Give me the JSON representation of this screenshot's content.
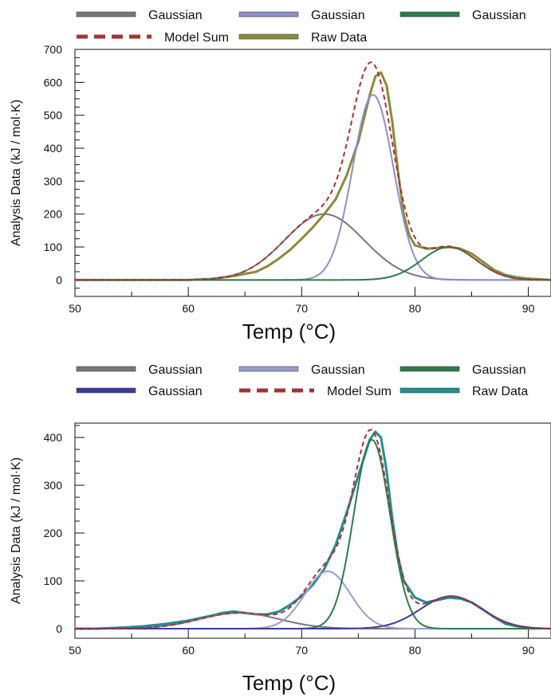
{
  "chart_data": [
    {
      "type": "line",
      "xlabel": "Temp (°C)",
      "ylabel": "Analysis Data (kJ / mol·K)",
      "xlim": [
        50,
        92
      ],
      "ylim": [
        -50,
        700
      ],
      "xticks": [
        50,
        60,
        70,
        80,
        90
      ],
      "yticks": [
        0,
        100,
        200,
        300,
        400,
        500,
        600,
        700
      ],
      "legend_position": "top",
      "series": [
        {
          "name": "Gaussian",
          "color": "#777777",
          "kind": "gaussian",
          "amp": 200,
          "mu": 72,
          "sigma": 3.5
        },
        {
          "name": "Gaussian",
          "color": "#8f8fc8",
          "kind": "gaussian",
          "amp": 562,
          "mu": 76.3,
          "sigma": 1.8
        },
        {
          "name": "Gaussian",
          "color": "#2e7a4e",
          "kind": "gaussian",
          "amp": 100,
          "mu": 83,
          "sigma": 2.4
        },
        {
          "name": "Model Sum",
          "color": "#a43434",
          "kind": "sum",
          "dashed": true
        },
        {
          "name": "Raw Data",
          "color": "#8a8a3c",
          "kind": "raw",
          "x": [
            50,
            55,
            60,
            62,
            64,
            66,
            67,
            68,
            69,
            70,
            71,
            72,
            73,
            74,
            75,
            76,
            76.5,
            77,
            77.5,
            78,
            78.5,
            79,
            79.5,
            80,
            81,
            82,
            83,
            84,
            85,
            86,
            87,
            88,
            89,
            90,
            92
          ],
          "y": [
            0,
            0,
            0,
            3,
            12,
            25,
            42,
            65,
            92,
            125,
            160,
            200,
            245,
            320,
            420,
            560,
            618,
            630,
            590,
            480,
            330,
            200,
            135,
            105,
            95,
            97,
            100,
            95,
            80,
            55,
            30,
            15,
            8,
            4,
            0
          ]
        }
      ]
    },
    {
      "type": "line",
      "xlabel": "Temp (°C)",
      "ylabel": "Analysis Data (kJ / mol·K)",
      "xlim": [
        50,
        92
      ],
      "ylim": [
        -20,
        430
      ],
      "xticks": [
        50,
        60,
        70,
        80,
        90
      ],
      "yticks": [
        0,
        100,
        200,
        300,
        400
      ],
      "legend_position": "top",
      "series": [
        {
          "name": "Gaussian",
          "color": "#777777",
          "kind": "gaussian",
          "amp": 33,
          "mu": 64.5,
          "sigma": 3.5
        },
        {
          "name": "Gaussian",
          "color": "#9b9bcc",
          "kind": "gaussian",
          "amp": 120,
          "mu": 72.3,
          "sigma": 2.0
        },
        {
          "name": "Gaussian",
          "color": "#2e7a4e",
          "kind": "gaussian",
          "amp": 395,
          "mu": 76.2,
          "sigma": 1.6
        },
        {
          "name": "Gaussian",
          "color": "#3c3c9a",
          "kind": "gaussian",
          "amp": 68,
          "mu": 83.2,
          "sigma": 2.7
        },
        {
          "name": "Model Sum",
          "color": "#a43434",
          "kind": "sum",
          "dashed": true
        },
        {
          "name": "Raw Data",
          "color": "#1f8f8f",
          "kind": "raw",
          "x": [
            50,
            52,
            54,
            56,
            58,
            60,
            62,
            63,
            64,
            65,
            66,
            67,
            68,
            69,
            70,
            71,
            72,
            73,
            74,
            75,
            76,
            76.5,
            77,
            77.5,
            78,
            78.5,
            79,
            80,
            81,
            82,
            83,
            84,
            85,
            86,
            87,
            88,
            89,
            90,
            90.5
          ],
          "y": [
            0,
            0,
            2,
            5,
            10,
            17,
            27,
            33,
            36,
            33,
            30,
            30,
            36,
            50,
            68,
            92,
            125,
            175,
            245,
            320,
            395,
            412,
            400,
            330,
            230,
            150,
            100,
            65,
            55,
            60,
            65,
            63,
            55,
            40,
            24,
            10,
            5,
            2,
            0
          ]
        }
      ]
    }
  ]
}
